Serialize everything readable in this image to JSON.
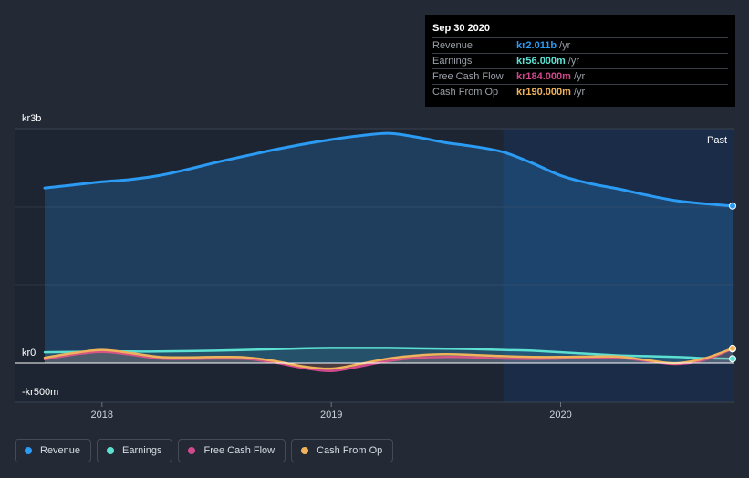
{
  "tooltip": {
    "date": "Sep 30 2020",
    "rows": [
      {
        "name": "Revenue",
        "value": "kr2.011b",
        "unit": "/yr",
        "color": "#2b9bf4"
      },
      {
        "name": "Earnings",
        "value": "kr56.000m",
        "unit": "/yr",
        "color": "#5ce0d2"
      },
      {
        "name": "Free Cash Flow",
        "value": "kr184.000m",
        "unit": "/yr",
        "color": "#d1488d"
      },
      {
        "name": "Cash From Op",
        "value": "kr190.000m",
        "unit": "/yr",
        "color": "#f0b35b"
      }
    ]
  },
  "legend": [
    {
      "label": "Revenue",
      "color": "#2b9bf4"
    },
    {
      "label": "Earnings",
      "color": "#5ce0d2"
    },
    {
      "label": "Free Cash Flow",
      "color": "#d1488d"
    },
    {
      "label": "Cash From Op",
      "color": "#f0b35b"
    }
  ],
  "chart_data": {
    "type": "area",
    "title": "",
    "xlabel": "",
    "ylabel": "",
    "y_tick_labels": [
      "kr3b",
      "kr0",
      "-kr500m"
    ],
    "x_tick_labels": [
      "2018",
      "2019",
      "2020"
    ],
    "past_label": "Past",
    "xlim": [
      2017.75,
      2020.75
    ],
    "ylim": [
      -500,
      3000
    ],
    "y_unit": "kr m",
    "highlight_from": 2019.75,
    "x": [
      2017.75,
      2017.875,
      2018.0,
      2018.125,
      2018.25,
      2018.375,
      2018.5,
      2018.625,
      2018.75,
      2018.875,
      2019.0,
      2019.125,
      2019.25,
      2019.375,
      2019.5,
      2019.625,
      2019.75,
      2019.875,
      2020.0,
      2020.125,
      2020.25,
      2020.375,
      2020.5,
      2020.625,
      2020.75
    ],
    "series": [
      {
        "name": "Revenue",
        "color": "#2b9bf4",
        "values": [
          2240,
          2280,
          2320,
          2350,
          2400,
          2480,
          2570,
          2650,
          2730,
          2800,
          2860,
          2910,
          2940,
          2890,
          2820,
          2770,
          2700,
          2560,
          2400,
          2300,
          2230,
          2150,
          2080,
          2040,
          2011
        ]
      },
      {
        "name": "Earnings",
        "color": "#5ce0d2",
        "values": [
          140,
          145,
          150,
          150,
          150,
          155,
          160,
          170,
          180,
          190,
          195,
          195,
          195,
          190,
          185,
          180,
          170,
          160,
          140,
          120,
          100,
          90,
          80,
          65,
          56
        ]
      },
      {
        "name": "Free Cash Flow",
        "color": "#d1488d",
        "values": [
          50,
          110,
          145,
          110,
          60,
          55,
          60,
          55,
          10,
          -60,
          -100,
          -40,
          30,
          70,
          80,
          75,
          60,
          55,
          60,
          70,
          70,
          30,
          -10,
          40,
          184
        ]
      },
      {
        "name": "Cash From Op",
        "color": "#f0b35b",
        "values": [
          70,
          130,
          170,
          130,
          80,
          75,
          80,
          75,
          30,
          -40,
          -70,
          -10,
          60,
          100,
          115,
          105,
          90,
          80,
          80,
          85,
          85,
          40,
          0,
          60,
          190
        ]
      }
    ]
  }
}
